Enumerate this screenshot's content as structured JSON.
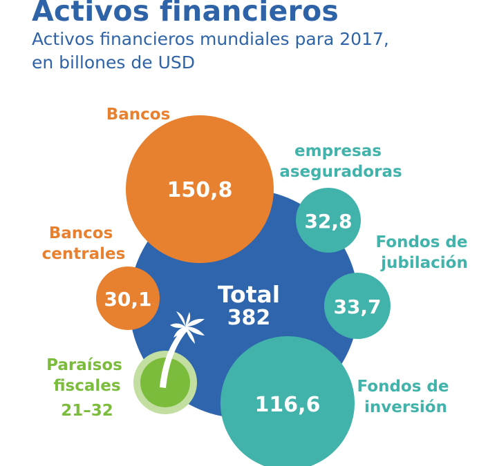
{
  "title": "Activos financieros",
  "subtitle_line1": "Activos financieros mundiales para 2017,",
  "subtitle_line2": "en billones de USD",
  "colors": {
    "title": "#2e63a8",
    "total": "#2f65ad",
    "orange": "#e8812f",
    "teal": "#41b3aa",
    "green": "#7cbc3c",
    "green_halo": "#c2dfa1"
  },
  "chart_data": {
    "type": "bubble",
    "total": {
      "label": "Total",
      "value": "382"
    },
    "bubbles": [
      {
        "name": "Bancos",
        "value": "150,8",
        "color": "orange"
      },
      {
        "name": "Bancos centrales",
        "value": "30,1",
        "color": "orange"
      },
      {
        "name": "empresas aseguradoras",
        "value": "32,8",
        "color": "teal"
      },
      {
        "name": "Fondos de jubilación",
        "value": "33,7",
        "color": "teal"
      },
      {
        "name": "Fondos de inversión",
        "value": "116,6",
        "color": "teal"
      },
      {
        "name": "Paraísos fiscales",
        "value": "21–32",
        "color": "green",
        "icon": "palm-tree-icon"
      }
    ]
  }
}
